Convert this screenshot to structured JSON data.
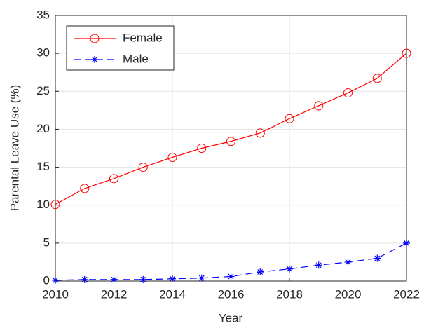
{
  "chart_data": {
    "type": "line",
    "x": [
      2010,
      2011,
      2012,
      2013,
      2014,
      2015,
      2016,
      2017,
      2018,
      2019,
      2020,
      2021,
      2022
    ],
    "series": [
      {
        "name": "Female",
        "color": "#ff0000",
        "line_style": "solid",
        "marker": "circle",
        "values": [
          10.1,
          12.2,
          13.5,
          15.0,
          16.3,
          17.5,
          18.4,
          19.5,
          21.4,
          23.1,
          24.8,
          26.7,
          30.0
        ]
      },
      {
        "name": "Male",
        "color": "#0000ff",
        "line_style": "dashed",
        "marker": "asterisk",
        "values": [
          0.1,
          0.2,
          0.2,
          0.2,
          0.3,
          0.4,
          0.6,
          1.2,
          1.6,
          2.1,
          2.5,
          3.0,
          5.0
        ]
      }
    ],
    "xlabel": "Year",
    "ylabel": "Parental Leave Use (%)",
    "xlim": [
      2010,
      2022
    ],
    "xticks": [
      2010,
      2012,
      2014,
      2016,
      2018,
      2020,
      2022
    ],
    "ylim": [
      0,
      35
    ],
    "yticks": [
      0,
      5,
      10,
      15,
      20,
      25,
      30,
      35
    ],
    "grid": true,
    "legend_position": "northwest"
  }
}
